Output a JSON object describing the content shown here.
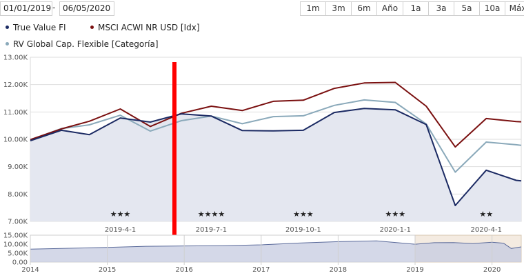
{
  "date_range": {
    "from": "01/01/2019",
    "separator": "-",
    "to": "06/05/2020"
  },
  "range_buttons": [
    "1m",
    "3m",
    "6m",
    "Año",
    "1a",
    "3a",
    "5a",
    "10a",
    "Máx"
  ],
  "colors": {
    "true_value": "#1b2a63",
    "msci": "#7a1010",
    "rv_global": "#8aa9ba",
    "area": "#e4e7f0",
    "annotation": "#ff0000"
  },
  "chart_data": {
    "type": "line",
    "ylim": [
      7000,
      13000
    ],
    "y_ticks": [
      "7.00K",
      "8.00K",
      "9.00K",
      "10.00K",
      "11.00K",
      "12.00K",
      "13.00K"
    ],
    "y_tick_values": [
      7000,
      8000,
      9000,
      10000,
      11000,
      12000,
      13000
    ],
    "x_ticks": [
      "2019-4-1",
      "2019-7-1",
      "2019-10-1",
      "2020-1-1",
      "2020-4-1"
    ],
    "x": [
      "2019-01-01",
      "2019-02-01",
      "2019-03-01",
      "2019-04-01",
      "2019-05-01",
      "2019-06-01",
      "2019-07-01",
      "2019-08-01",
      "2019-09-01",
      "2019-10-01",
      "2019-11-01",
      "2019-12-01",
      "2020-01-01",
      "2020-02-01",
      "2020-03-01",
      "2020-04-01",
      "2020-05-01",
      "2020-05-06"
    ],
    "series": [
      {
        "name": "True Value FI",
        "values": [
          9950,
          10330,
          10170,
          10780,
          10630,
          10930,
          10850,
          10320,
          10310,
          10330,
          10980,
          11130,
          11080,
          10540,
          7580,
          8870,
          8500,
          8480
        ]
      },
      {
        "name": "MSCI ACWI NR USD [Idx]",
        "values": [
          9990,
          10380,
          10660,
          11110,
          10470,
          10950,
          11210,
          11050,
          11390,
          11430,
          11860,
          12060,
          12080,
          11210,
          9720,
          10760,
          10650,
          10640
        ]
      },
      {
        "name": "RV Global Cap. Flexible [Categoría]",
        "values": [
          9980,
          10390,
          10530,
          10880,
          10300,
          10680,
          10850,
          10570,
          10830,
          10860,
          11240,
          11440,
          11350,
          10560,
          8800,
          9900,
          9800,
          9780
        ]
      }
    ],
    "ratings": [
      {
        "label": "★★★",
        "x": "2019-04-01"
      },
      {
        "label": "★★★★",
        "x": "2019-07-01"
      },
      {
        "label": "★★★",
        "x": "2019-10-01"
      },
      {
        "label": "★★★",
        "x": "2020-01-01"
      },
      {
        "label": "★★",
        "x": "2020-04-01"
      }
    ],
    "navigator": {
      "y_ticks": [
        "0.00",
        "5.00K",
        "10.00K",
        "15.00K"
      ],
      "y_tick_values": [
        0,
        5000,
        10000,
        15000
      ],
      "x_ticks": [
        "2014",
        "2015",
        "2016",
        "2017",
        "2018",
        "2019",
        "2020"
      ],
      "x_tick_values": [
        2014,
        2015,
        2016,
        2017,
        2018,
        2019,
        2020
      ],
      "xlim": [
        2014,
        2020.38
      ],
      "selection": [
        2019,
        2020.38
      ],
      "x": [
        2014.0,
        2014.5,
        2015.0,
        2015.5,
        2016.0,
        2016.5,
        2017.0,
        2017.5,
        2018.0,
        2018.5,
        2019.0,
        2019.25,
        2019.5,
        2019.75,
        2020.0,
        2020.15,
        2020.25,
        2020.38
      ],
      "values": [
        7200,
        7700,
        8200,
        8800,
        9000,
        9100,
        9600,
        10600,
        11400,
        11800,
        9950,
        10800,
        10850,
        10330,
        11080,
        10540,
        7580,
        8480
      ]
    }
  }
}
